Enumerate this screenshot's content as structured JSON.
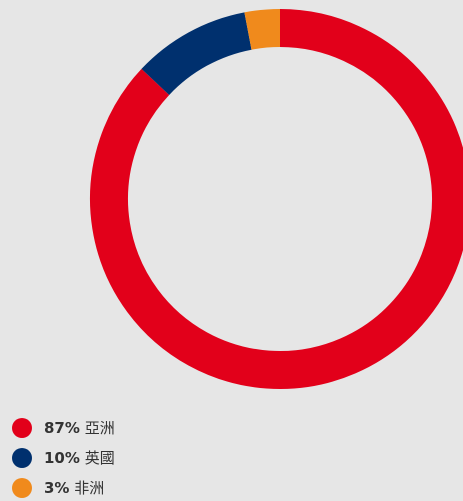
{
  "chart_data": {
    "type": "donut",
    "categories": [
      "亞洲",
      "英國",
      "非洲"
    ],
    "values": [
      87,
      10,
      3
    ],
    "value_labels": [
      "87%",
      "10%",
      "3%"
    ],
    "colors": [
      "#e2001a",
      "#00306e",
      "#f08a1c"
    ]
  }
}
